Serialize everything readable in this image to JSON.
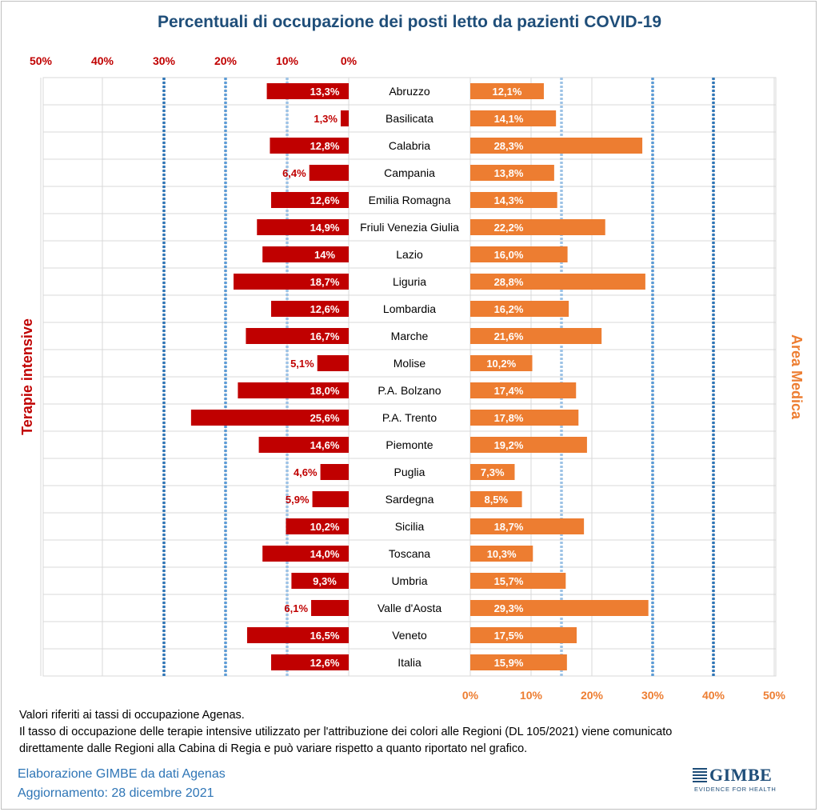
{
  "colors": {
    "left_bar": "#c00000",
    "right_bar": "#ed7d31",
    "title": "#1f4e79",
    "threshold_light": "#9dc3e6",
    "threshold_mid": "#5b9bd5",
    "threshold_dark": "#2e75b6"
  },
  "chart_data": {
    "type": "bar",
    "orientation": "horizontal-butterfly",
    "title": "Percentuali di occupazione dei posti letto da pazienti COVID-19",
    "categories": [
      "Abruzzo",
      "Basilicata",
      "Calabria",
      "Campania",
      "Emilia Romagna",
      "Friuli Venezia Giulia",
      "Lazio",
      "Liguria",
      "Lombardia",
      "Marche",
      "Molise",
      "P.A. Bolzano",
      "P.A. Trento",
      "Piemonte",
      "Puglia",
      "Sardegna",
      "Sicilia",
      "Toscana",
      "Umbria",
      "Valle d'Aosta",
      "Veneto",
      "Italia"
    ],
    "series": [
      {
        "name": "Terapie intensive",
        "side": "left",
        "values": [
          13.3,
          1.3,
          12.8,
          6.4,
          12.6,
          14.9,
          14,
          18.7,
          12.6,
          16.7,
          5.1,
          18.0,
          25.6,
          14.6,
          4.6,
          5.9,
          10.2,
          14.0,
          9.3,
          6.1,
          16.5,
          12.6
        ],
        "labels": [
          "13,3%",
          "1,3%",
          "12,8%",
          "6,4%",
          "12,6%",
          "14,9%",
          "14%",
          "18,7%",
          "12,6%",
          "16,7%",
          "5,1%",
          "18,0%",
          "25,6%",
          "14,6%",
          "4,6%",
          "5,9%",
          "10,2%",
          "14,0%",
          "9,3%",
          "6,1%",
          "16,5%",
          "12,6%"
        ],
        "thresholds": [
          10,
          20,
          30
        ]
      },
      {
        "name": "Area Medica",
        "side": "right",
        "values": [
          12.1,
          14.1,
          28.3,
          13.8,
          14.3,
          22.2,
          16.0,
          28.8,
          16.2,
          21.6,
          10.2,
          17.4,
          17.8,
          19.2,
          7.3,
          8.5,
          18.7,
          10.3,
          15.7,
          29.3,
          17.5,
          15.9
        ],
        "labels": [
          "12,1%",
          "14,1%",
          "28,3%",
          "13,8%",
          "14,3%",
          "22,2%",
          "16,0%",
          "28,8%",
          "16,2%",
          "21,6%",
          "10,2%",
          "17,4%",
          "17,8%",
          "19,2%",
          "7,3%",
          "8,5%",
          "18,7%",
          "10,3%",
          "15,7%",
          "29,3%",
          "17,5%",
          "15,9%"
        ],
        "thresholds": [
          15,
          30,
          40
        ]
      }
    ],
    "left_axis": {
      "range": [
        0,
        50
      ],
      "ticks": [
        "50%",
        "40%",
        "30%",
        "20%",
        "10%",
        "0%"
      ],
      "tick_values": [
        50,
        40,
        30,
        20,
        10,
        0
      ],
      "position": "top",
      "color": "#c00000"
    },
    "right_axis": {
      "range": [
        0,
        50
      ],
      "ticks": [
        "0%",
        "10%",
        "20%",
        "30%",
        "40%",
        "50%"
      ],
      "tick_values": [
        0,
        10,
        20,
        30,
        40,
        50
      ],
      "position": "bottom",
      "color": "#ed7d31"
    },
    "grid": true
  },
  "notes": {
    "line1": "Valori riferiti ai tassi di occupazione Agenas.",
    "line2": "Il tasso di occupazione delle terapie intensive utilizzato per l'attribuzione dei colori alle Regioni (DL 105/2021) viene comunicato",
    "line3": "direttamente dalle Regioni alla Cabina di Regia e può variare rispetto a quanto riportato nel grafico."
  },
  "footer": {
    "source": "Elaborazione GIMBE da dati Agenas",
    "updated": "Aggiornamento: 28 dicembre 2021"
  },
  "logo": {
    "word": "GIMBE",
    "tagline": "EVIDENCE FOR HEALTH"
  }
}
